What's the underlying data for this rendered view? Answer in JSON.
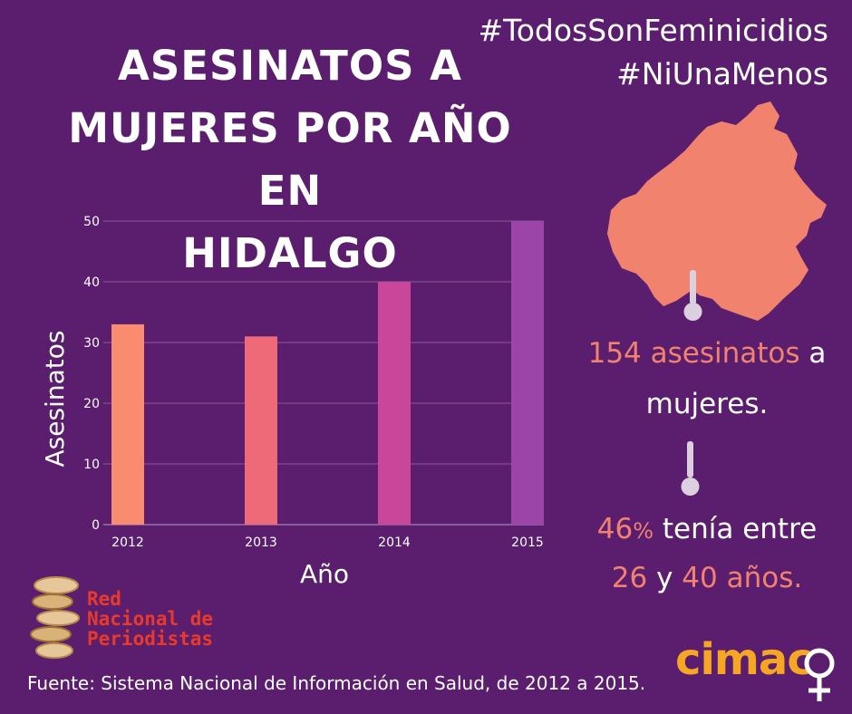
{
  "header": {
    "title_lines": [
      "ASESINATOS A",
      "MUJERES POR AÑO EN",
      "HIDALGO"
    ],
    "hashtags": [
      "#TodosSonFeminicidios",
      "#NiUnaMenos"
    ]
  },
  "stats": {
    "stat1_number": "154",
    "stat1_word": "asesinatos",
    "stat1_tail": "a",
    "stat1_line2": "mujeres.",
    "stat2_percent": "46",
    "stat2_percent_sign": "%",
    "stat2_text": "tenía entre",
    "stat2_low": "26",
    "stat2_and": "y",
    "stat2_high": "40",
    "stat2_unit": "años."
  },
  "footer": {
    "source": "Fuente: Sistema Nacional de Información en Salud, de 2012 a 2015.",
    "logo_red_lines": [
      "Red",
      "Nacional de",
      "Periodistas"
    ],
    "logo_cimac": "cimac"
  },
  "colors": {
    "background": "#5b1e6e",
    "accent": "#f0826e",
    "bars": [
      "#f98b6e",
      "#ee6a78",
      "#c9479a",
      "#9b45a8"
    ]
  },
  "chart_data": {
    "type": "bar",
    "categories": [
      "2012",
      "2013",
      "2014",
      "2015"
    ],
    "values": [
      33,
      31,
      40,
      50
    ],
    "title": "",
    "xlabel": "Año",
    "ylabel": "Asesinatos",
    "ylim": [
      0,
      50
    ],
    "yticks": [
      0,
      10,
      20,
      30,
      40,
      50
    ],
    "grid": true,
    "legend": "none"
  }
}
